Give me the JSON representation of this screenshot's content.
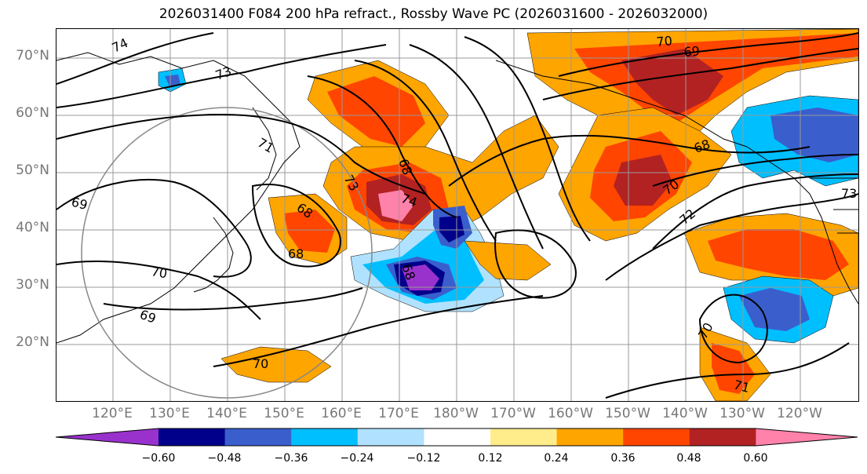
{
  "title": "2026031400 F084 200 hPa refract., Rossby Wave PC (2026031600 - 2026032000)",
  "lat_labels": [
    "70°N",
    "60°N",
    "50°N",
    "40°N",
    "30°N",
    "20°N"
  ],
  "lon_labels": [
    "120°E",
    "130°E",
    "140°E",
    "150°E",
    "160°E",
    "170°E",
    "180°W",
    "170°W",
    "160°W",
    "150°W",
    "140°W",
    "130°W",
    "120°W"
  ],
  "colorbar": {
    "colors": [
      "#9932CC",
      "#00008B",
      "#3A5FCD",
      "#00BFFF",
      "#B0E2FF",
      "#FFFFFF",
      "#FFEC8B",
      "#FFA500",
      "#FF4500",
      "#B22222",
      "#FF82AB"
    ],
    "tick_labels": [
      "−0.60",
      "−0.48",
      "−0.36",
      "−0.24",
      "−0.12",
      "0.12",
      "0.24",
      "0.36",
      "0.48",
      "0.60"
    ]
  },
  "contour_labels": [
    "74",
    "73",
    "71",
    "69",
    "68",
    "70",
    "69",
    "70",
    "69",
    "68",
    "68",
    "74",
    "73",
    "68",
    "70",
    "72",
    "73",
    "70",
    "71",
    "70",
    "68"
  ]
}
